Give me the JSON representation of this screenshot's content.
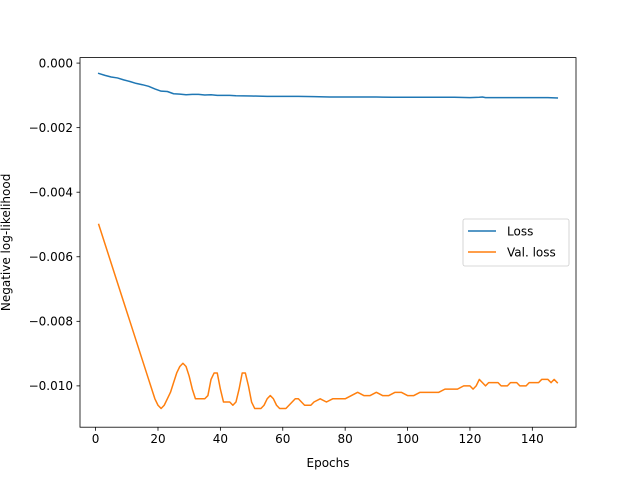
{
  "chart_data": {
    "type": "line",
    "title": "",
    "xlabel": "Epochs",
    "ylabel": "Negative log-likelihood",
    "xlim": [
      -5,
      154
    ],
    "ylim": [
      -0.01128,
      0.00017
    ],
    "xticks": [
      0,
      20,
      40,
      60,
      80,
      100,
      120,
      140
    ],
    "xtick_labels": [
      "0",
      "20",
      "40",
      "60",
      "80",
      "100",
      "120",
      "140"
    ],
    "yticks": [
      0.0,
      -0.002,
      -0.004,
      -0.006,
      -0.008,
      -0.01
    ],
    "ytick_labels": [
      "0.000",
      "−0.002",
      "−0.004",
      "−0.006",
      "−0.008",
      "−0.010"
    ],
    "grid": false,
    "legend_position": "center-right",
    "series": [
      {
        "name": "Loss",
        "color": "#1f77b4",
        "x": [
          1,
          3,
          5,
          7,
          9,
          11,
          13,
          15,
          17,
          19,
          21,
          23,
          25,
          27,
          29,
          31,
          33,
          35,
          37,
          39,
          41,
          43,
          45,
          50,
          55,
          60,
          65,
          70,
          75,
          80,
          85,
          90,
          95,
          100,
          105,
          110,
          115,
          120,
          123,
          124,
          125,
          130,
          135,
          140,
          145,
          148
        ],
        "y": [
          -0.00032,
          -0.00038,
          -0.00043,
          -0.00046,
          -0.00052,
          -0.00057,
          -0.00063,
          -0.00067,
          -0.00072,
          -0.0008,
          -0.00087,
          -0.00088,
          -0.00095,
          -0.00096,
          -0.00098,
          -0.00097,
          -0.00097,
          -0.00099,
          -0.00098,
          -0.001,
          -0.001,
          -0.001,
          -0.00101,
          -0.00102,
          -0.00103,
          -0.00103,
          -0.00103,
          -0.00104,
          -0.00105,
          -0.00105,
          -0.00105,
          -0.00105,
          -0.00106,
          -0.00106,
          -0.00106,
          -0.00106,
          -0.00106,
          -0.00107,
          -0.00106,
          -0.00105,
          -0.00107,
          -0.00107,
          -0.00107,
          -0.00107,
          -0.00107,
          -0.00108
        ]
      },
      {
        "name": "Val. loss",
        "color": "#ff7f0e",
        "x": [
          1,
          3,
          5,
          7,
          9,
          11,
          13,
          15,
          17,
          18,
          19,
          20,
          21,
          22,
          23,
          24,
          25,
          26,
          27,
          28,
          29,
          30,
          31,
          32,
          33,
          34,
          35,
          36,
          37,
          38,
          39,
          40,
          41,
          42,
          43,
          44,
          45,
          46,
          47,
          48,
          49,
          50,
          51,
          52,
          53,
          54,
          55,
          56,
          57,
          58,
          59,
          60,
          61,
          62,
          63,
          64,
          65,
          66,
          67,
          68,
          69,
          70,
          72,
          74,
          76,
          78,
          80,
          82,
          84,
          86,
          88,
          90,
          92,
          94,
          96,
          98,
          100,
          102,
          104,
          106,
          108,
          110,
          112,
          114,
          116,
          118,
          120,
          121,
          122,
          123,
          124,
          125,
          126,
          127,
          128,
          129,
          130,
          131,
          132,
          133,
          134,
          135,
          136,
          137,
          138,
          139,
          140,
          141,
          142,
          143,
          144,
          145,
          146,
          147,
          148
        ],
        "y": [
          -0.005,
          -0.0056,
          -0.0062,
          -0.0068,
          -0.0074,
          -0.008,
          -0.0086,
          -0.0092,
          -0.0098,
          -0.0101,
          -0.0104,
          -0.0106,
          -0.0107,
          -0.0106,
          -0.0104,
          -0.0102,
          -0.0099,
          -0.0096,
          -0.0094,
          -0.0093,
          -0.0094,
          -0.0097,
          -0.0101,
          -0.0104,
          -0.0104,
          -0.0104,
          -0.0104,
          -0.0103,
          -0.0098,
          -0.0096,
          -0.0096,
          -0.0101,
          -0.0105,
          -0.0105,
          -0.0105,
          -0.0106,
          -0.0105,
          -0.0101,
          -0.0096,
          -0.0096,
          -0.01,
          -0.0105,
          -0.0107,
          -0.0107,
          -0.0107,
          -0.0106,
          -0.0104,
          -0.0103,
          -0.0104,
          -0.0106,
          -0.0107,
          -0.0107,
          -0.0107,
          -0.0106,
          -0.0105,
          -0.0104,
          -0.0104,
          -0.0105,
          -0.0106,
          -0.0106,
          -0.0106,
          -0.0105,
          -0.0104,
          -0.0105,
          -0.0104,
          -0.0104,
          -0.0104,
          -0.0103,
          -0.0102,
          -0.0103,
          -0.0103,
          -0.0102,
          -0.0103,
          -0.0103,
          -0.0102,
          -0.0102,
          -0.0103,
          -0.0103,
          -0.0102,
          -0.0102,
          -0.0102,
          -0.0102,
          -0.0101,
          -0.0101,
          -0.0101,
          -0.01,
          -0.01,
          -0.0101,
          -0.01,
          -0.0098,
          -0.0099,
          -0.01,
          -0.0099,
          -0.0099,
          -0.0099,
          -0.0099,
          -0.01,
          -0.01,
          -0.01,
          -0.0099,
          -0.0099,
          -0.0099,
          -0.01,
          -0.01,
          -0.01,
          -0.0099,
          -0.0099,
          -0.0099,
          -0.0099,
          -0.0098,
          -0.0098,
          -0.0098,
          -0.0099,
          -0.0098,
          -0.0099
        ]
      }
    ]
  }
}
